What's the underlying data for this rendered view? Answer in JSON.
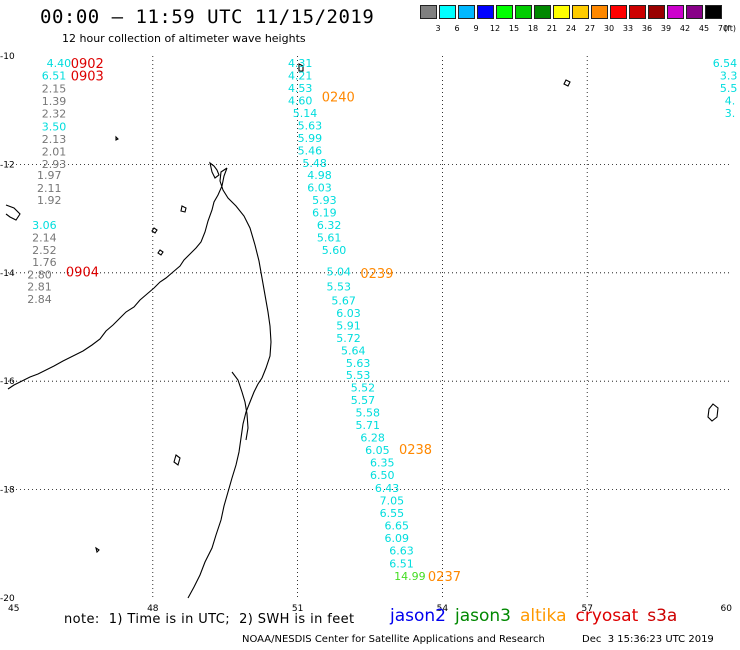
{
  "header": {
    "title": "00:00 — 11:59 UTC 11/15/2019",
    "subtitle": "12 hour collection of altimeter wave heights"
  },
  "legend": {
    "unit": "(ft)",
    "items": [
      {
        "label": "3",
        "color": "#808080"
      },
      {
        "label": "6",
        "color": "#00ffff"
      },
      {
        "label": "9",
        "color": "#00b8ff"
      },
      {
        "label": "12",
        "color": "#0000ff"
      },
      {
        "label": "15",
        "color": "#00ff00"
      },
      {
        "label": "18",
        "color": "#00cc00"
      },
      {
        "label": "21",
        "color": "#008800"
      },
      {
        "label": "24",
        "color": "#ffff00"
      },
      {
        "label": "27",
        "color": "#ffcc00"
      },
      {
        "label": "30",
        "color": "#ff8800"
      },
      {
        "label": "33",
        "color": "#ff0000"
      },
      {
        "label": "36",
        "color": "#cc0000"
      },
      {
        "label": "39",
        "color": "#990000"
      },
      {
        "label": "42",
        "color": "#cc00cc"
      },
      {
        "label": "45",
        "color": "#880088"
      },
      {
        "label": "70",
        "color": "#000000"
      }
    ]
  },
  "axes": {
    "lon_min": 45,
    "lon_max": 60,
    "lat_min": -20,
    "lat_max": -10,
    "lon_ticks": [
      "45",
      "48",
      "51",
      "54",
      "57",
      "60"
    ],
    "lat_ticks": [
      "-10",
      "-12",
      "-14",
      "-16",
      "-18",
      "-20"
    ]
  },
  "tracks": [
    {
      "time_label": "0902",
      "label_color": "#dd0000",
      "at": [
        46.3,
        -10.13
      ],
      "readings": [
        {
          "value": "4.40",
          "color": "#00dddd",
          "at": [
            45.8,
            -10.13
          ]
        }
      ]
    },
    {
      "time_label": "0903",
      "label_color": "#dd0000",
      "at": [
        46.3,
        -10.36
      ],
      "readings": [
        {
          "value": "6.51",
          "color": "#00dddd",
          "at": [
            45.7,
            -10.36
          ]
        },
        {
          "value": "2.15",
          "color": "#777777",
          "at": [
            45.7,
            -10.6
          ]
        },
        {
          "value": "1.39",
          "color": "#777777",
          "at": [
            45.7,
            -10.83
          ]
        },
        {
          "value": "2.32",
          "color": "#777777",
          "at": [
            45.7,
            -11.06
          ]
        },
        {
          "value": "3.50",
          "color": "#00dddd",
          "at": [
            45.7,
            -11.3
          ]
        },
        {
          "value": "2.13",
          "color": "#777777",
          "at": [
            45.7,
            -11.53
          ]
        },
        {
          "value": "2.01",
          "color": "#777777",
          "at": [
            45.7,
            -11.76
          ]
        },
        {
          "value": "2.93",
          "color": "#777777",
          "at": [
            45.7,
            -11.99
          ]
        },
        {
          "value": "1.97",
          "color": "#777777",
          "at": [
            45.6,
            -12.2
          ]
        },
        {
          "value": "2.11",
          "color": "#777777",
          "at": [
            45.6,
            -12.44
          ]
        },
        {
          "value": "1.92",
          "color": "#777777",
          "at": [
            45.6,
            -12.66
          ]
        },
        {
          "value": "3.06",
          "color": "#00dddd",
          "at": [
            45.5,
            -13.12
          ]
        },
        {
          "value": "2.14",
          "color": "#777777",
          "at": [
            45.5,
            -13.35
          ]
        },
        {
          "value": "2.52",
          "color": "#777777",
          "at": [
            45.5,
            -13.58
          ]
        },
        {
          "value": "1.76",
          "color": "#777777",
          "at": [
            45.5,
            -13.8
          ]
        }
      ]
    },
    {
      "time_label": "0904",
      "label_color": "#dd0000",
      "at": [
        46.2,
        -13.98
      ],
      "readings": [
        {
          "value": "2.80",
          "color": "#777777",
          "at": [
            45.4,
            -14.03
          ]
        },
        {
          "value": "2.81",
          "color": "#777777",
          "at": [
            45.4,
            -14.25
          ]
        },
        {
          "value": "2.84",
          "color": "#777777",
          "at": [
            45.4,
            -14.48
          ]
        }
      ]
    },
    {
      "time_label": "0240",
      "label_color": "#ff8800",
      "at": [
        51.5,
        -10.75
      ],
      "readings": [
        {
          "value": "4.31",
          "color": "#00dddd",
          "at": [
            50.8,
            -10.13
          ]
        },
        {
          "value": "4.21",
          "color": "#00dddd",
          "at": [
            50.8,
            -10.36
          ]
        },
        {
          "value": "4.53",
          "color": "#00dddd",
          "at": [
            50.8,
            -10.59
          ]
        },
        {
          "value": "4.60",
          "color": "#00dddd",
          "at": [
            50.8,
            -10.82
          ]
        },
        {
          "value": "5.14",
          "color": "#00dddd",
          "at": [
            50.9,
            -11.05
          ]
        },
        {
          "value": "5.63",
          "color": "#00dddd",
          "at": [
            51.0,
            -11.28
          ]
        },
        {
          "value": "5.99",
          "color": "#00dddd",
          "at": [
            51.0,
            -11.51
          ]
        },
        {
          "value": "5.46",
          "color": "#00dddd",
          "at": [
            51.0,
            -11.74
          ]
        },
        {
          "value": "5.48",
          "color": "#00dddd",
          "at": [
            51.1,
            -11.97
          ]
        },
        {
          "value": "4.98",
          "color": "#00dddd",
          "at": [
            51.2,
            -12.2
          ]
        },
        {
          "value": "6.03",
          "color": "#00dddd",
          "at": [
            51.2,
            -12.43
          ]
        },
        {
          "value": "5.93",
          "color": "#00dddd",
          "at": [
            51.3,
            -12.66
          ]
        },
        {
          "value": "6.19",
          "color": "#00dddd",
          "at": [
            51.3,
            -12.89
          ]
        },
        {
          "value": "6.32",
          "color": "#00dddd",
          "at": [
            51.4,
            -13.12
          ]
        },
        {
          "value": "5.61",
          "color": "#00dddd",
          "at": [
            51.4,
            -13.35
          ]
        },
        {
          "value": "5.60",
          "color": "#00dddd",
          "at": [
            51.5,
            -13.58
          ]
        }
      ]
    },
    {
      "time_label": "0239",
      "label_color": "#ff8800",
      "at": [
        52.3,
        -14.0
      ],
      "readings": [
        {
          "value": "5.04",
          "color": "#00dddd",
          "at": [
            51.6,
            -13.98
          ]
        },
        {
          "value": "5.53",
          "color": "#00dddd",
          "at": [
            51.6,
            -14.25
          ]
        },
        {
          "value": "5.67",
          "color": "#00dddd",
          "at": [
            51.7,
            -14.51
          ]
        },
        {
          "value": "6.03",
          "color": "#00dddd",
          "at": [
            51.8,
            -14.74
          ]
        },
        {
          "value": "5.91",
          "color": "#00dddd",
          "at": [
            51.8,
            -14.97
          ]
        },
        {
          "value": "5.72",
          "color": "#00dddd",
          "at": [
            51.8,
            -15.2
          ]
        },
        {
          "value": "5.64",
          "color": "#00dddd",
          "at": [
            51.9,
            -15.43
          ]
        },
        {
          "value": "5.63",
          "color": "#00dddd",
          "at": [
            52.0,
            -15.66
          ]
        },
        {
          "value": "5.53",
          "color": "#00dddd",
          "at": [
            52.0,
            -15.89
          ]
        },
        {
          "value": "5.52",
          "color": "#00dddd",
          "at": [
            52.1,
            -16.12
          ]
        },
        {
          "value": "5.57",
          "color": "#00dddd",
          "at": [
            52.1,
            -16.35
          ]
        },
        {
          "value": "5.58",
          "color": "#00dddd",
          "at": [
            52.2,
            -16.58
          ]
        },
        {
          "value": "5.71",
          "color": "#00dddd",
          "at": [
            52.2,
            -16.81
          ]
        },
        {
          "value": "6.28",
          "color": "#00dddd",
          "at": [
            52.3,
            -17.04
          ]
        }
      ]
    },
    {
      "time_label": "0238",
      "label_color": "#ff8800",
      "at": [
        53.1,
        -17.25
      ],
      "readings": [
        {
          "value": "6.05",
          "color": "#00dddd",
          "at": [
            52.4,
            -17.27
          ]
        },
        {
          "value": "6.35",
          "color": "#00dddd",
          "at": [
            52.5,
            -17.5
          ]
        },
        {
          "value": "6.50",
          "color": "#00dddd",
          "at": [
            52.5,
            -17.73
          ]
        },
        {
          "value": "6.43",
          "color": "#00dddd",
          "at": [
            52.6,
            -17.97
          ]
        },
        {
          "value": "7.05",
          "color": "#00dddd",
          "at": [
            52.7,
            -18.2
          ]
        },
        {
          "value": "6.55",
          "color": "#00dddd",
          "at": [
            52.7,
            -18.43
          ]
        },
        {
          "value": "6.65",
          "color": "#00dddd",
          "at": [
            52.8,
            -18.66
          ]
        },
        {
          "value": "6.09",
          "color": "#00dddd",
          "at": [
            52.8,
            -18.89
          ]
        },
        {
          "value": "6.63",
          "color": "#00dddd",
          "at": [
            52.9,
            -19.12
          ]
        },
        {
          "value": "6.51",
          "color": "#00dddd",
          "at": [
            52.9,
            -19.36
          ]
        }
      ]
    },
    {
      "time_label": "0237",
      "label_color": "#ff8800",
      "at": [
        53.7,
        -19.59
      ],
      "readings": [
        {
          "value": "14.99",
          "color": "#44dd22",
          "at": [
            53.0,
            -19.59
          ]
        }
      ]
    },
    {
      "time_label": "",
      "label_color": "#00dddd",
      "at": [
        59.95,
        -10.13
      ],
      "readings": [
        {
          "value": "6.54",
          "color": "#00dddd",
          "at": [
            59.6,
            -10.13
          ]
        },
        {
          "value": "3.3",
          "color": "#00dddd",
          "at": [
            59.75,
            -10.36
          ]
        },
        {
          "value": "5.5",
          "color": "#00dddd",
          "at": [
            59.75,
            -10.59
          ]
        },
        {
          "value": "4.",
          "color": "#00dddd",
          "at": [
            59.85,
            -10.82
          ]
        },
        {
          "value": "3.",
          "color": "#00dddd",
          "at": [
            59.85,
            -11.05
          ]
        }
      ]
    }
  ],
  "footer": {
    "note": "note:  1) Time is in UTC;  2) SWH is in feet",
    "satellites": [
      {
        "name": "jason2",
        "color": "#0000ee"
      },
      {
        "name": "jason3",
        "color": "#008800"
      },
      {
        "name": "altika",
        "color": "#ff9900"
      },
      {
        "name": "cryosat",
        "color": "#dd0000"
      },
      {
        "name": "s3a",
        "color": "#cc0000"
      }
    ],
    "credit": "NOAA/NESDIS Center for Satellite Applications and Research",
    "date": "Dec  3 15:36:23 UTC 2019"
  }
}
